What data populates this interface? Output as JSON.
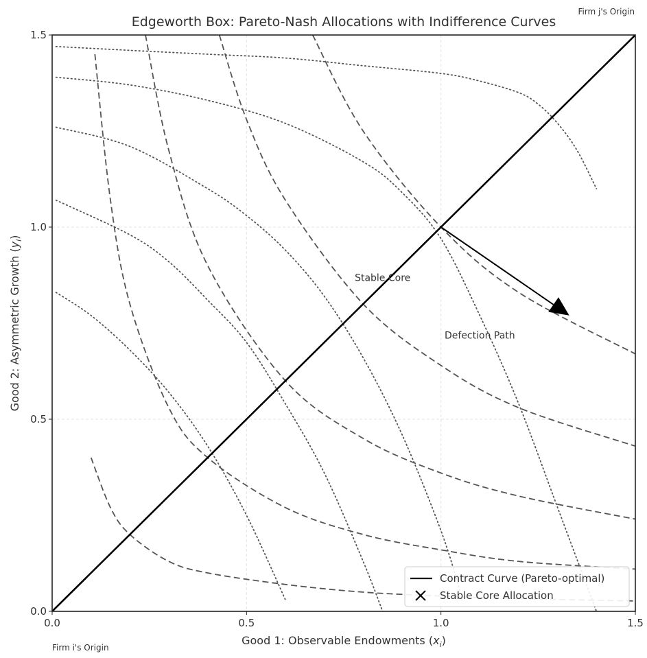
{
  "chart_data": {
    "type": "line",
    "title": "Edgeworth Box: Pareto-Nash Allocations with Indifference Curves",
    "xlabel": "Good 1: Observable Endowments (x_i)",
    "ylabel": "Good 2: Asymmetric Growth (y_i)",
    "xlim": [
      0,
      1.5
    ],
    "ylim": [
      0,
      1.5
    ],
    "x_ticks": [
      "0.0",
      "0.5",
      "1.0",
      "1.5"
    ],
    "y_ticks": [
      "0.0",
      "0.5",
      "1.0",
      "1.5"
    ],
    "grid": true,
    "legend_position": "lower-right",
    "corner_labels": {
      "firm_i": "Firm i's Origin",
      "firm_j": "Firm j's Origin"
    },
    "annotations": {
      "stable_core": {
        "text": "Stable Core",
        "x": 0.85,
        "y": 0.86
      },
      "defection_path": {
        "text": "Defection Path",
        "x": 1.1,
        "y": 0.71
      }
    },
    "arrow": {
      "from": [
        1.0,
        1.0
      ],
      "to": [
        1.33,
        0.77
      ]
    },
    "series": [
      {
        "name": "Contract Curve (Pareto-optimal)",
        "style": "solid",
        "color": "#000000",
        "points": [
          [
            0,
            0
          ],
          [
            1.5,
            1.5
          ]
        ]
      },
      {
        "name": "Stable Core Allocation",
        "style": "marker-x",
        "color": "#000000",
        "points": []
      }
    ],
    "indifference_curves_i": [
      {
        "k": 0.04,
        "points": [
          [
            0.1,
            0.4
          ],
          [
            0.15,
            0.27
          ],
          [
            0.2,
            0.2
          ],
          [
            0.3,
            0.13
          ],
          [
            0.4,
            0.1
          ],
          [
            0.6,
            0.07
          ],
          [
            0.8,
            0.05
          ],
          [
            1.0,
            0.04
          ],
          [
            1.2,
            0.033
          ],
          [
            1.5,
            0.027
          ]
        ]
      },
      {
        "k": 0.16,
        "points": [
          [
            0.11,
            1.45
          ],
          [
            0.15,
            1.07
          ],
          [
            0.2,
            0.8
          ],
          [
            0.3,
            0.53
          ],
          [
            0.4,
            0.4
          ],
          [
            0.6,
            0.27
          ],
          [
            0.8,
            0.2
          ],
          [
            1.0,
            0.16
          ],
          [
            1.2,
            0.13
          ],
          [
            1.5,
            0.11
          ]
        ]
      },
      {
        "k": 0.36,
        "points": [
          [
            0.24,
            1.5
          ],
          [
            0.3,
            1.2
          ],
          [
            0.4,
            0.9
          ],
          [
            0.6,
            0.6
          ],
          [
            0.8,
            0.45
          ],
          [
            1.0,
            0.36
          ],
          [
            1.2,
            0.3
          ],
          [
            1.5,
            0.24
          ]
        ]
      },
      {
        "k": 0.64,
        "points": [
          [
            0.43,
            1.5
          ],
          [
            0.5,
            1.28
          ],
          [
            0.6,
            1.07
          ],
          [
            0.8,
            0.8
          ],
          [
            1.0,
            0.64
          ],
          [
            1.2,
            0.53
          ],
          [
            1.5,
            0.43
          ]
        ]
      },
      {
        "k": 1.0,
        "points": [
          [
            0.67,
            1.5
          ],
          [
            0.8,
            1.25
          ],
          [
            1.0,
            1.0
          ],
          [
            1.2,
            0.83
          ],
          [
            1.5,
            0.67
          ]
        ]
      }
    ],
    "indifference_curves_j": [
      {
        "k": 0.04,
        "points": [
          [
            0.01,
            1.47
          ],
          [
            0.2,
            1.46
          ],
          [
            0.4,
            1.45
          ],
          [
            0.6,
            1.44
          ],
          [
            0.8,
            1.42
          ],
          [
            1.0,
            1.4
          ],
          [
            1.1,
            1.38
          ],
          [
            1.2,
            1.35
          ],
          [
            1.25,
            1.32
          ],
          [
            1.3,
            1.27
          ],
          [
            1.35,
            1.2
          ],
          [
            1.4,
            1.1
          ]
        ]
      },
      {
        "k": 0.16,
        "points": [
          [
            0.01,
            1.39
          ],
          [
            0.2,
            1.37
          ],
          [
            0.4,
            1.33
          ],
          [
            0.6,
            1.27
          ],
          [
            0.8,
            1.17
          ],
          [
            0.9,
            1.09
          ],
          [
            1.0,
            0.97
          ],
          [
            1.1,
            0.77
          ],
          [
            1.2,
            0.54
          ],
          [
            1.3,
            0.27
          ],
          [
            1.4,
            0.0
          ]
        ]
      },
      {
        "k": 0.36,
        "points": [
          [
            0.01,
            1.26
          ],
          [
            0.2,
            1.21
          ],
          [
            0.4,
            1.1
          ],
          [
            0.5,
            1.03
          ],
          [
            0.6,
            0.94
          ],
          [
            0.7,
            0.82
          ],
          [
            0.8,
            0.66
          ],
          [
            0.9,
            0.46
          ],
          [
            1.0,
            0.21
          ],
          [
            1.05,
            0.05
          ]
        ]
      },
      {
        "k": 0.64,
        "points": [
          [
            0.01,
            1.07
          ],
          [
            0.2,
            0.98
          ],
          [
            0.3,
            0.91
          ],
          [
            0.4,
            0.81
          ],
          [
            0.5,
            0.7
          ],
          [
            0.6,
            0.54
          ],
          [
            0.7,
            0.36
          ],
          [
            0.8,
            0.13
          ],
          [
            0.85,
            0.0
          ]
        ]
      },
      {
        "k": 1.0,
        "points": [
          [
            0.01,
            0.83
          ],
          [
            0.1,
            0.77
          ],
          [
            0.2,
            0.68
          ],
          [
            0.3,
            0.57
          ],
          [
            0.4,
            0.43
          ],
          [
            0.5,
            0.25
          ],
          [
            0.6,
            0.03
          ]
        ]
      }
    ]
  }
}
